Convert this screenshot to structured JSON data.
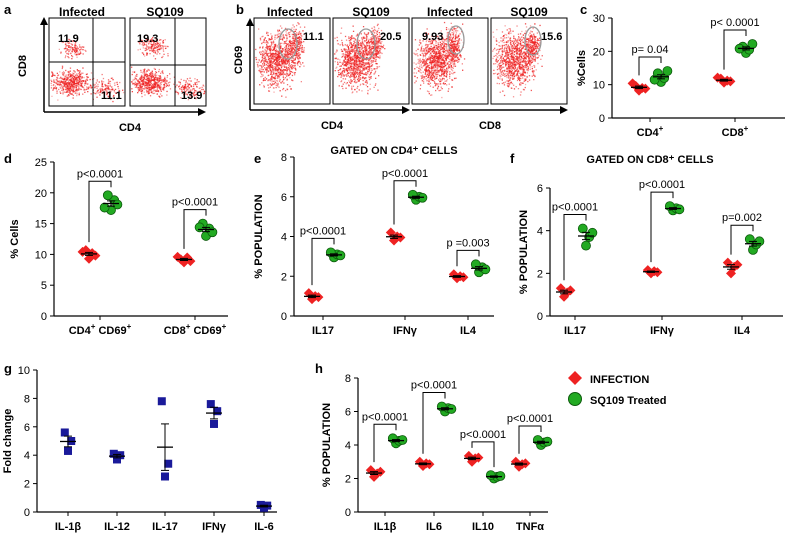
{
  "colors": {
    "red": "#ee2222",
    "red_dark": "#b01818",
    "green": "#22aa22",
    "green_dark": "#0d5a0d",
    "blue": "#1a1a9a",
    "axis": "#000000",
    "gate": "#999999"
  },
  "legend": {
    "infection": "INFECTION",
    "treated": "SQ109 Treated"
  },
  "panel_a": {
    "letter": "a",
    "xlabel": "CD4",
    "ylabel": "CD8",
    "plots": [
      {
        "title": "Infected",
        "upper_left": "11.9",
        "lower_right": "11.1"
      },
      {
        "title": "SQ109",
        "upper_left": "19.3",
        "lower_right": "13.9"
      }
    ]
  },
  "panel_b": {
    "letter": "b",
    "ylabel": "CD69",
    "groups": [
      {
        "xlabel": "CD4",
        "plots": [
          {
            "title": "Infected",
            "value": "11.1"
          },
          {
            "title": "SQ109",
            "value": "20.5"
          }
        ]
      },
      {
        "xlabel": "CD8",
        "plots": [
          {
            "title": "Infected",
            "value": "9.93"
          },
          {
            "title": "SQ109",
            "value": "15.6"
          }
        ]
      }
    ]
  },
  "chart_data": [
    {
      "id": "c",
      "type": "scatter",
      "title": "",
      "ylabel": "%Cells",
      "xlabel": "",
      "ylim": [
        0,
        30
      ],
      "yticks": [
        0,
        10,
        20,
        30
      ],
      "categories": [
        "CD4",
        "CD8"
      ],
      "category_superscripts": [
        "+",
        "+"
      ],
      "series": [
        {
          "name": "INFECTION",
          "values": [
            [
              8.2,
              9,
              9.6,
              8.8,
              10.4
            ],
            [
              10.6,
              11.2,
              11.8,
              11.0,
              12.1
            ]
          ]
        },
        {
          "name": "SQ109 Treated",
          "values": [
            [
              10.8,
              12,
              13.4,
              14.1,
              11.5
            ],
            [
              19.5,
              20.5,
              21.4,
              22.2,
              20.8
            ]
          ]
        }
      ],
      "significance": [
        {
          "label": "p= 0.04"
        },
        {
          "label": "p< 0.0001"
        }
      ]
    },
    {
      "id": "d",
      "type": "scatter",
      "title": "",
      "ylabel": "% Cells",
      "xlabel": "",
      "ylim": [
        0,
        25
      ],
      "yticks": [
        0,
        5,
        10,
        15,
        20,
        25
      ],
      "categories": [
        "CD4",
        "CD8"
      ],
      "category_prefix_sup": [
        "+",
        "+"
      ],
      "category_suffix": [
        "CD69",
        "CD69"
      ],
      "series": [
        {
          "name": "INFECTION",
          "values": [
            [
              9.3,
              10.2,
              10.7,
              9.8,
              10.4
            ],
            [
              8.7,
              9.5,
              9.2,
              8.9,
              9.6
            ]
          ]
        },
        {
          "name": "SQ109 Treated",
          "values": [
            [
              17.2,
              18.8,
              19.6,
              18.1,
              17.6
            ],
            [
              13.0,
              14.2,
              15.0,
              13.6,
              14.4
            ]
          ]
        }
      ],
      "significance": [
        {
          "label": "p<0.0001"
        },
        {
          "label": "p<0.0001"
        }
      ]
    },
    {
      "id": "e",
      "type": "scatter",
      "title": "GATED ON CD4⁺ CELLS",
      "ylabel": "% POPULATION",
      "xlabel": "",
      "ylim": [
        0,
        8
      ],
      "yticks": [
        0,
        2,
        4,
        6,
        8
      ],
      "categories": [
        "IL17",
        "IFNγ",
        "IL4"
      ],
      "series": [
        {
          "name": "INFECTION",
          "values": [
            [
              0.85,
              1.0,
              1.15,
              0.95
            ],
            [
              3.8,
              4.0,
              4.2,
              3.95
            ],
            [
              1.9,
              2.0,
              2.1,
              1.95
            ]
          ]
        },
        {
          "name": "SQ109 Treated",
          "values": [
            [
              2.95,
              3.1,
              3.2,
              3.05
            ],
            [
              5.85,
              6.0,
              6.1,
              5.95
            ],
            [
              2.2,
              2.45,
              2.6,
              2.35
            ]
          ]
        }
      ],
      "significance": [
        {
          "label": "p<0.0001"
        },
        {
          "label": "p<0.0001"
        },
        {
          "label": "p =0.003"
        }
      ]
    },
    {
      "id": "f",
      "type": "scatter",
      "title": "GATED ON CD8⁺ CELLS",
      "ylabel": "% POPULATION",
      "xlabel": "",
      "ylim": [
        0,
        6
      ],
      "yticks": [
        0,
        2,
        4,
        6
      ],
      "categories": [
        "IL17",
        "IFNγ",
        "IL4"
      ],
      "series": [
        {
          "name": "INFECTION",
          "values": [
            [
              0.9,
              1.1,
              1.3,
              1.2
            ],
            [
              2.0,
              2.1,
              2.15,
              2.05
            ],
            [
              2.0,
              2.3,
              2.5,
              2.4
            ]
          ]
        },
        {
          "name": "SQ109 Treated",
          "values": [
            [
              3.3,
              3.7,
              4.1,
              3.9
            ],
            [
              4.95,
              5.05,
              5.15,
              5.0
            ],
            [
              3.1,
              3.35,
              3.6,
              3.5
            ]
          ]
        }
      ],
      "significance": [
        {
          "label": "p<0.0001"
        },
        {
          "label": "p<0.0001"
        },
        {
          "label": "p=0.002"
        }
      ]
    },
    {
      "id": "g",
      "type": "scatter",
      "title": "",
      "ylabel": "Fold change",
      "xlabel": "",
      "ylim": [
        0,
        10
      ],
      "yticks": [
        0,
        2,
        4,
        6,
        8,
        10
      ],
      "categories": [
        "IL-1β",
        "IL-12",
        "IL-17",
        "IFNγ",
        "IL-6"
      ],
      "series": [
        {
          "name": "Fold change",
          "values": [
            [
              4.3,
              5.0,
              5.6
            ],
            [
              3.7,
              4.0,
              4.1
            ],
            [
              2.5,
              3.4,
              7.8
            ],
            [
              6.2,
              7.1,
              7.6
            ],
            [
              0.3,
              0.45,
              0.5
            ]
          ]
        }
      ]
    },
    {
      "id": "h",
      "type": "scatter",
      "title": "",
      "ylabel": "% POPULATION",
      "xlabel": "",
      "ylim": [
        0,
        8
      ],
      "yticks": [
        0,
        2,
        4,
        6,
        8
      ],
      "categories": [
        "IL1β",
        "IL6",
        "IL10",
        "TNFα"
      ],
      "series": [
        {
          "name": "INFECTION",
          "values": [
            [
              2.1,
              2.3,
              2.5,
              2.4
            ],
            [
              2.75,
              2.9,
              3.0,
              2.85
            ],
            [
              3.0,
              3.2,
              3.35,
              3.25
            ],
            [
              2.7,
              2.85,
              3.0,
              2.9
            ]
          ]
        },
        {
          "name": "SQ109 Treated",
          "values": [
            [
              4.1,
              4.25,
              4.4,
              4.3
            ],
            [
              6.0,
              6.2,
              6.3,
              6.15
            ],
            [
              2.0,
              2.1,
              2.2,
              2.15
            ],
            [
              4.0,
              4.15,
              4.3,
              4.2
            ]
          ]
        }
      ],
      "significance": [
        {
          "label": "p<0.0001"
        },
        {
          "label": "p<0.0001"
        },
        {
          "label": "p<0.0001"
        },
        {
          "label": "p<0.0001"
        }
      ]
    }
  ]
}
